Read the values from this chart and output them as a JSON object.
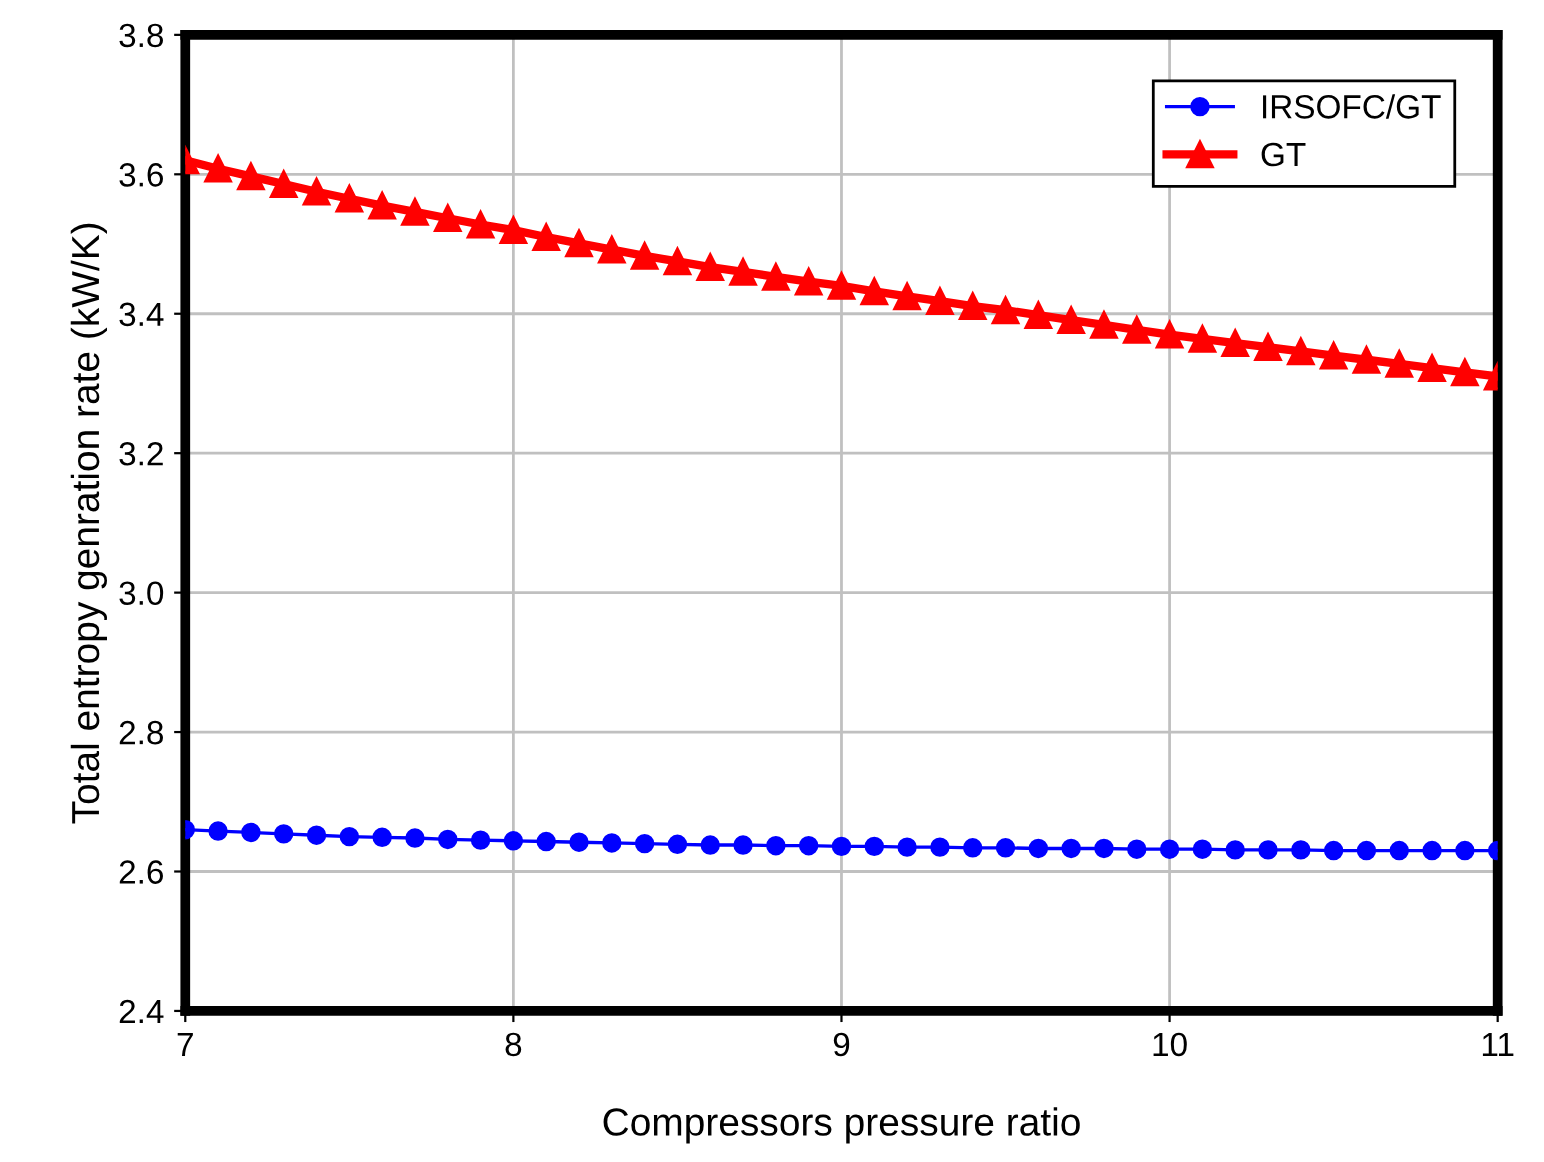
{
  "chart_data": {
    "type": "line",
    "xlabel": "Compressors pressure ratio",
    "ylabel": "Total entropy genration rate (kW/K)",
    "x": [
      7.0,
      7.1,
      7.2,
      7.3,
      7.4,
      7.5,
      7.6,
      7.7,
      7.8,
      7.9,
      8.0,
      8.1,
      8.2,
      8.3,
      8.4,
      8.5,
      8.6,
      8.7,
      8.8,
      8.9,
      9.0,
      9.1,
      9.2,
      9.3,
      9.4,
      9.5,
      9.6,
      9.7,
      9.8,
      9.9,
      10.0,
      10.1,
      10.2,
      10.3,
      10.4,
      10.5,
      10.6,
      10.7,
      10.8,
      10.9,
      11.0
    ],
    "series": [
      {
        "name": "IRSOFC/GT",
        "color": "#0000ff",
        "marker": "circle",
        "values": [
          2.66,
          2.658,
          2.656,
          2.654,
          2.652,
          2.65,
          2.649,
          2.648,
          2.646,
          2.645,
          2.644,
          2.643,
          2.642,
          2.641,
          2.64,
          2.639,
          2.638,
          2.638,
          2.637,
          2.637,
          2.636,
          2.636,
          2.635,
          2.635,
          2.634,
          2.634,
          2.633,
          2.633,
          2.633,
          2.632,
          2.632,
          2.632,
          2.631,
          2.631,
          2.631,
          2.63,
          2.63,
          2.63,
          2.63,
          2.63,
          2.63
        ]
      },
      {
        "name": "GT",
        "color": "#ff0000",
        "marker": "triangle",
        "values": [
          3.62,
          3.608,
          3.597,
          3.586,
          3.575,
          3.565,
          3.555,
          3.546,
          3.537,
          3.528,
          3.52,
          3.51,
          3.501,
          3.492,
          3.483,
          3.475,
          3.467,
          3.46,
          3.453,
          3.446,
          3.44,
          3.432,
          3.425,
          3.418,
          3.411,
          3.405,
          3.398,
          3.391,
          3.384,
          3.377,
          3.37,
          3.364,
          3.358,
          3.352,
          3.346,
          3.34,
          3.334,
          3.328,
          3.322,
          3.316,
          3.31
        ]
      }
    ],
    "xlim": [
      7,
      11
    ],
    "xticks": [
      7,
      8,
      9,
      10,
      11
    ],
    "ylim": [
      2.4,
      3.8
    ],
    "yticks": [
      2.4,
      2.6,
      2.8,
      {
        "value": 3,
        "label": "3.0"
      },
      3.2,
      3.4,
      3.6,
      3.8
    ],
    "grid": true,
    "legend": "top right",
    "line_style": "solid"
  }
}
